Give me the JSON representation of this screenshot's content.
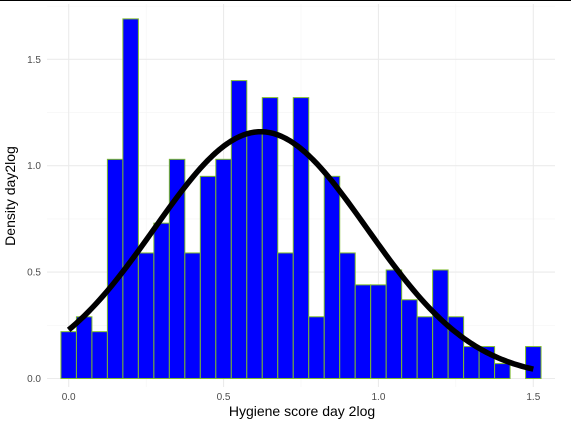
{
  "chart_data": {
    "type": "bar",
    "subtype": "histogram-with-density-curve",
    "xlabel": "Hygiene score day 2log",
    "ylabel": "Density day2log",
    "xlim": [
      -0.07,
      1.57
    ],
    "ylim": [
      -0.04,
      1.76
    ],
    "x_ticks": [
      0.0,
      0.5,
      1.0,
      1.5
    ],
    "x_tick_labels": [
      "0.0",
      "0.5",
      "1.0",
      "1.5"
    ],
    "y_ticks": [
      0.0,
      0.5,
      1.0,
      1.5
    ],
    "y_tick_labels": [
      "0.0",
      "0.5",
      "1.0",
      "1.5"
    ],
    "grid": true,
    "legend": "none",
    "bin_width": 0.05,
    "bins": [
      {
        "x": 0.0,
        "density": 0.22
      },
      {
        "x": 0.05,
        "density": 0.29
      },
      {
        "x": 0.1,
        "density": 0.22
      },
      {
        "x": 0.15,
        "density": 1.03
      },
      {
        "x": 0.2,
        "density": 1.69
      },
      {
        "x": 0.25,
        "density": 0.59
      },
      {
        "x": 0.3,
        "density": 0.73
      },
      {
        "x": 0.35,
        "density": 1.03
      },
      {
        "x": 0.4,
        "density": 0.59
      },
      {
        "x": 0.45,
        "density": 0.95
      },
      {
        "x": 0.5,
        "density": 1.03
      },
      {
        "x": 0.55,
        "density": 1.4
      },
      {
        "x": 0.6,
        "density": 1.15
      },
      {
        "x": 0.65,
        "density": 1.32
      },
      {
        "x": 0.7,
        "density": 0.59
      },
      {
        "x": 0.75,
        "density": 1.32
      },
      {
        "x": 0.8,
        "density": 0.29
      },
      {
        "x": 0.85,
        "density": 0.95
      },
      {
        "x": 0.9,
        "density": 0.59
      },
      {
        "x": 0.95,
        "density": 0.44
      },
      {
        "x": 1.0,
        "density": 0.44
      },
      {
        "x": 1.05,
        "density": 0.51
      },
      {
        "x": 1.1,
        "density": 0.37
      },
      {
        "x": 1.15,
        "density": 0.29
      },
      {
        "x": 1.2,
        "density": 0.51
      },
      {
        "x": 1.25,
        "density": 0.29
      },
      {
        "x": 1.3,
        "density": 0.15
      },
      {
        "x": 1.35,
        "density": 0.15
      },
      {
        "x": 1.4,
        "density": 0.07
      },
      {
        "x": 1.45,
        "density": 0.0
      },
      {
        "x": 1.5,
        "density": 0.15
      }
    ],
    "density_curve": {
      "type": "normal",
      "mean": 0.62,
      "sd": 0.344,
      "x_range": [
        0.0,
        1.5
      ]
    },
    "colors": {
      "bar_fill": "#0000ff",
      "bar_outline": "#7cba2c",
      "curve": "#000000",
      "grid_major": "#ebebeb",
      "grid_minor": "#f5f5f5"
    }
  }
}
